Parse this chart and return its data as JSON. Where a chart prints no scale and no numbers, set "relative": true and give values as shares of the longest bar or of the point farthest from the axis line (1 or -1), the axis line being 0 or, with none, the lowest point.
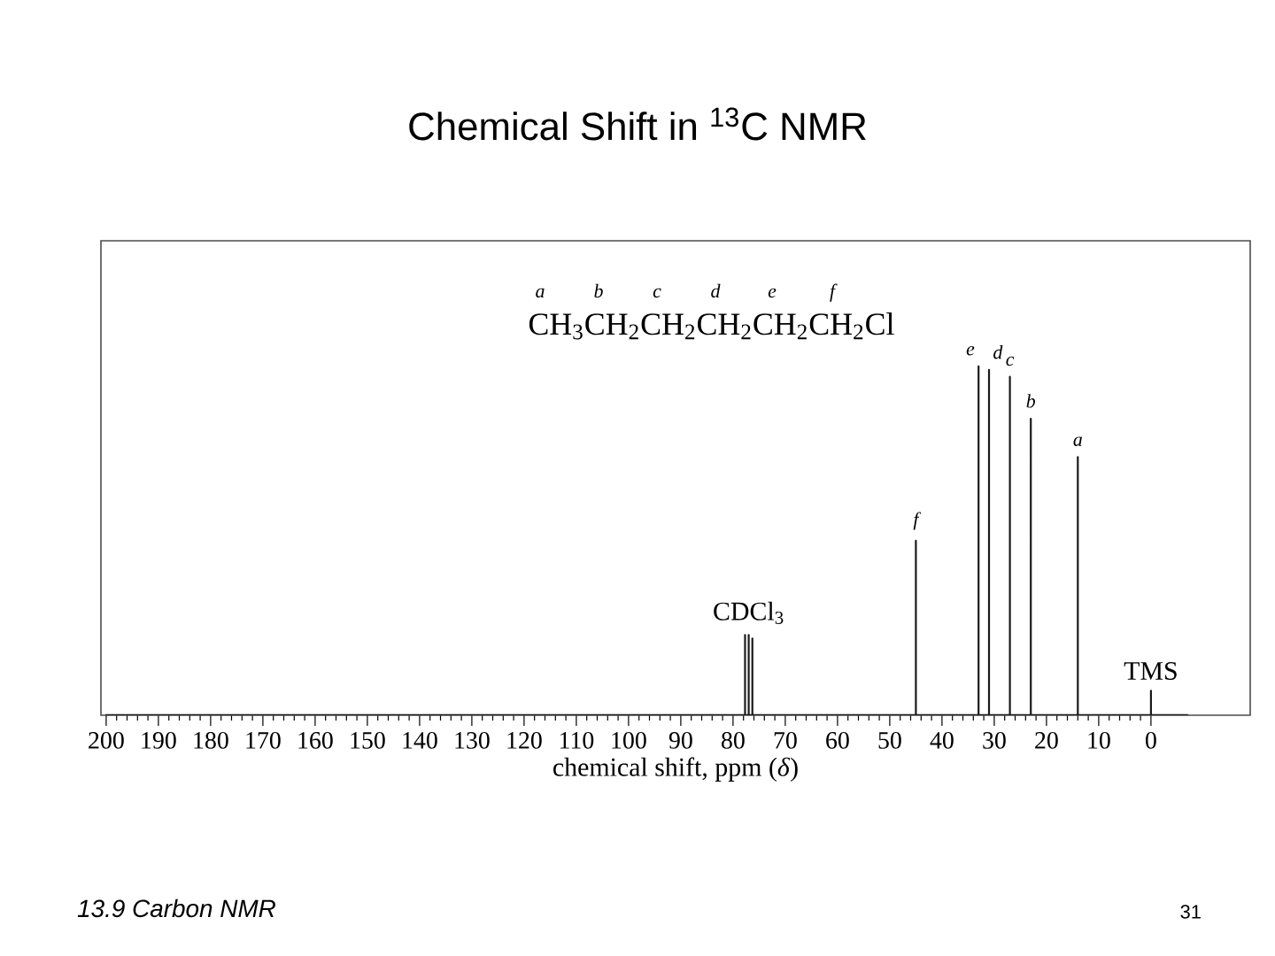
{
  "chart_data": {
    "type": "line",
    "title": "Chemical Shift in $^{13}$C NMR",
    "xlabel": "chemical shift, ppm (*δ*)",
    "relative": true,
    "xlim": [
      201,
      -19
    ],
    "xticks": [
      200,
      190,
      180,
      170,
      160,
      150,
      140,
      130,
      120,
      110,
      100,
      90,
      80,
      70,
      60,
      50,
      40,
      30,
      20,
      10,
      0
    ],
    "grid": false,
    "marker": "none",
    "line_style": "solid",
    "series": [
      {
        "color": "#1a1a1a",
        "x": [
          200,
          77.7,
          77.7,
          77.7,
          77.0,
          77.0,
          77.0,
          76.3,
          76.3,
          76.3,
          45,
          45,
          45,
          33,
          33,
          33,
          31,
          31,
          31,
          27,
          27,
          27,
          23,
          23,
          23,
          14,
          14,
          14,
          0,
          0,
          0,
          -7
        ],
        "values": [
          0,
          0,
          0.23,
          0,
          0,
          0.23,
          0,
          0,
          0.22,
          0,
          0,
          0.5,
          0,
          0,
          1,
          0,
          0,
          0.99,
          0,
          0,
          0.97,
          0,
          0,
          0.85,
          0,
          0,
          0.74,
          0,
          0,
          0.07,
          0,
          0
        ]
      }
    ],
    "annotations": [
      "CH$_{3}$CH$_{2}$CH$_{2}$CH$_{2}$CH$_{2}$CH$_{2}$Cl",
      "a",
      "b",
      "c",
      "d",
      "e",
      "f",
      {
        "text": "a",
        "x": 14,
        "y": 0.74
      },
      {
        "text": "b",
        "x": 23,
        "y": 0.85
      },
      {
        "text": "c",
        "x": 27,
        "y": 0.97
      },
      {
        "text": "d",
        "x": 31,
        "y": 0.99
      },
      {
        "text": "e",
        "x": 33,
        "y": 1
      },
      {
        "text": "f",
        "x": 45,
        "y": 0.5
      },
      {
        "text": "CDCl$_{3}$",
        "x": 77,
        "y": 0.23
      },
      {
        "text": "TMS",
        "x": 0,
        "y": 0.07
      },
      "13.9 Carbon NMR",
      "31"
    ]
  }
}
